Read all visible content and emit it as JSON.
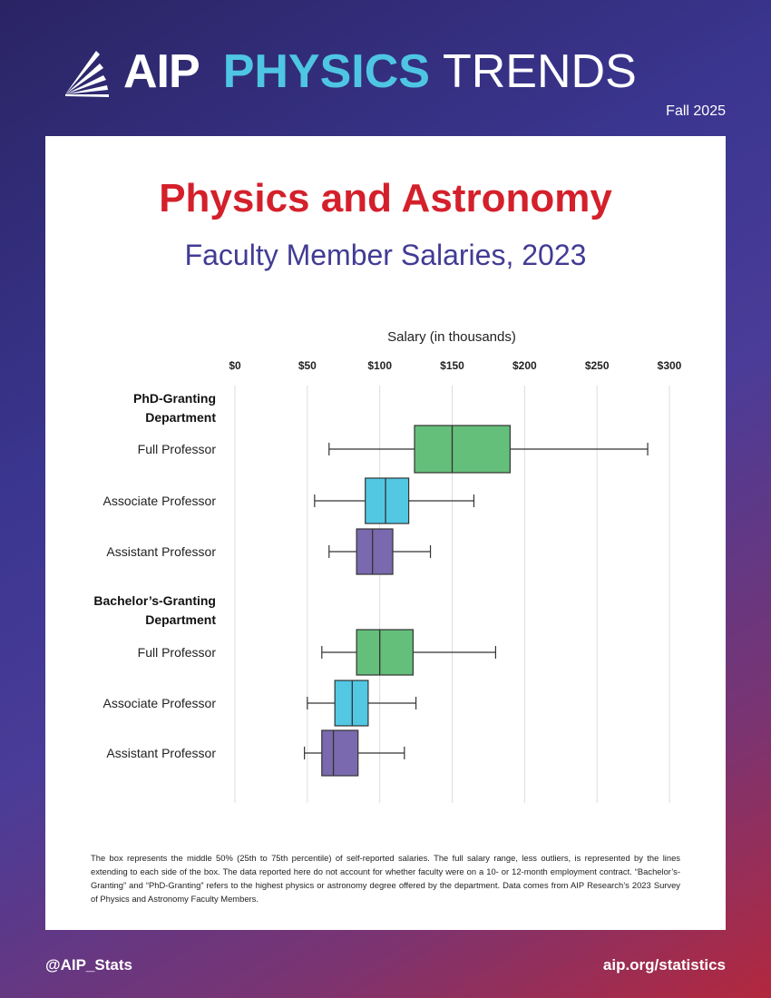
{
  "header": {
    "brand": "AIP",
    "series_word1": "PHYSICS",
    "series_word2": "TRENDS",
    "edition": "Fall 2025"
  },
  "colors": {
    "full": "#64bf7b",
    "associate": "#52c8e3",
    "assistant": "#7a69ae",
    "title": "#d4202b",
    "subtitle": "#423b95"
  },
  "chart_data": {
    "type": "boxplot",
    "title": "Physics and Astronomy",
    "subtitle": "Faculty Member Salaries, 2023",
    "xlabel": "Salary (in thousands)",
    "xlim": [
      0,
      300
    ],
    "ticks": [
      0,
      50,
      100,
      150,
      200,
      250,
      300
    ],
    "tick_labels": [
      "$0",
      "$50",
      "$100",
      "$150",
      "$200",
      "$250",
      "$300"
    ],
    "grid": true,
    "groups": [
      {
        "name": "PhD-Granting Department",
        "name_lines": [
          "PhD-Granting",
          "Department"
        ],
        "rows": [
          {
            "label": "Full Professor",
            "min": 65,
            "q1": 124,
            "median": 150,
            "q3": 190,
            "max": 285
          },
          {
            "label": "Associate Professor",
            "min": 55,
            "q1": 90,
            "median": 104,
            "q3": 120,
            "max": 165
          },
          {
            "label": "Assistant Professor",
            "min": 65,
            "q1": 84,
            "median": 95,
            "q3": 109,
            "max": 135
          }
        ]
      },
      {
        "name": "Bachelor's-Granting Department",
        "name_lines": [
          "Bachelor’s-Granting",
          "Department"
        ],
        "rows": [
          {
            "label": "Full Professor",
            "min": 60,
            "q1": 84,
            "median": 100,
            "q3": 123,
            "max": 180
          },
          {
            "label": "Associate Professor",
            "min": 50,
            "q1": 69,
            "median": 81,
            "q3": 92,
            "max": 125
          },
          {
            "label": "Assistant Professor",
            "min": 48,
            "q1": 60,
            "median": 68,
            "q3": 85,
            "max": 117
          }
        ]
      }
    ]
  },
  "footnote": "The box represents the middle 50% (25th to 75th percentile) of self-reported salaries. The full salary range, less outliers, is represented by the lines extending to each side of the box. The data reported here do not account for whether faculty were on a 10- or 12-month employment contract. “Bachelor’s-Granting” and “PhD-Granting” refers to the highest physics or astronomy degree offered by the department. Data comes from AIP Research’s 2023 Survey of Physics and Astronomy Faculty Members.",
  "footer": {
    "handle": "@AIP_Stats",
    "url": "aip.org/statistics"
  }
}
